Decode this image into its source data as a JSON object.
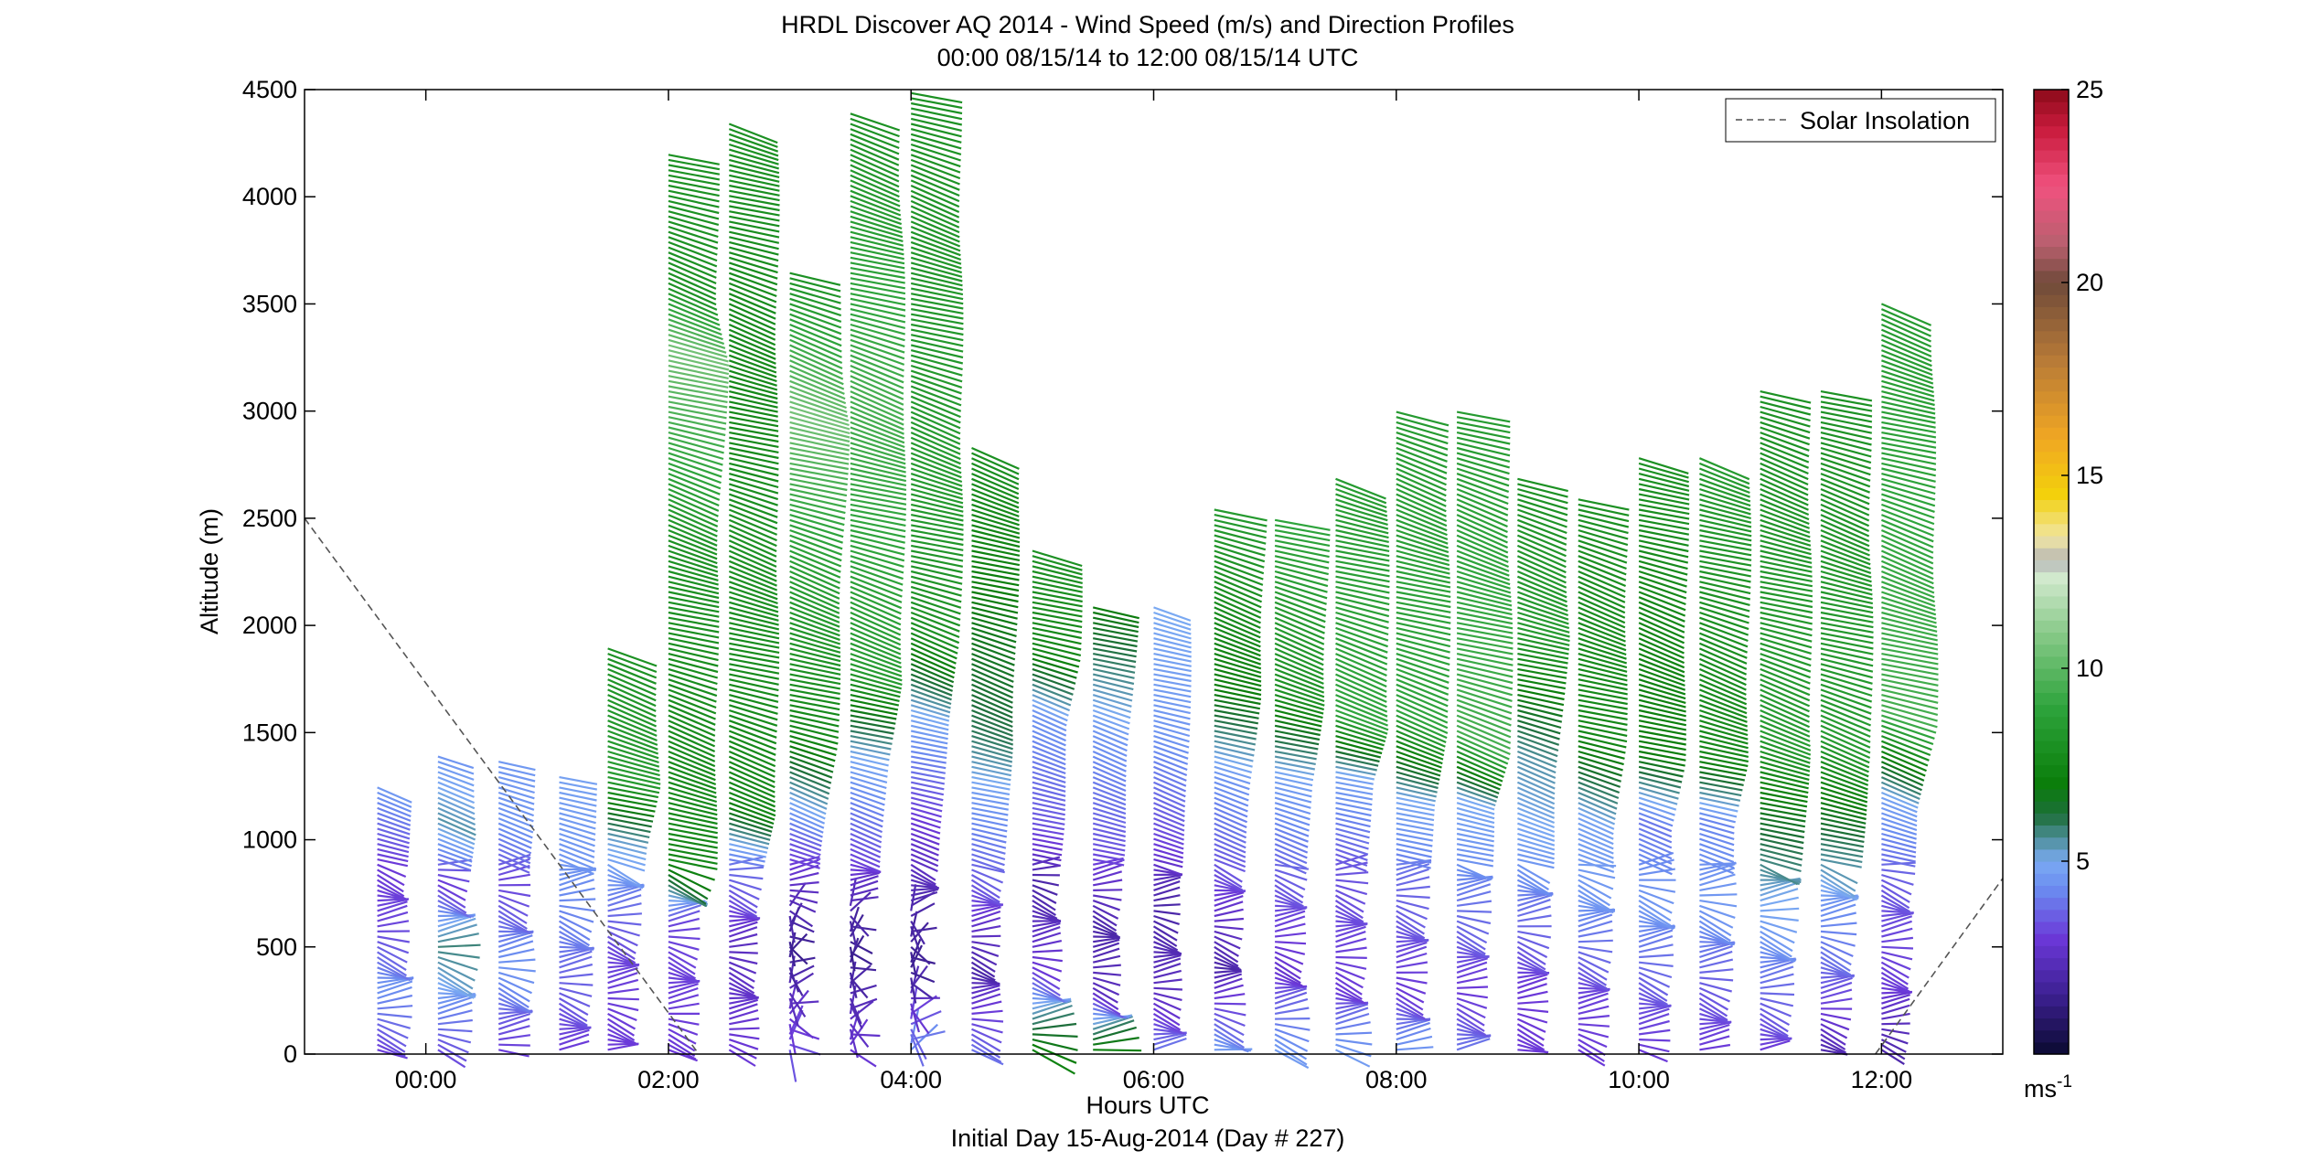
{
  "chart_data": {
    "type": "wind-barb-profile",
    "title": "HRDL Discover AQ 2014 - Wind Speed (m/s) and Direction Profiles",
    "subtitle": "00:00 08/15/14 to 12:00 08/15/14  UTC",
    "xlabel": "Hours UTC",
    "xlabel2": "Initial Day 15-Aug-2014 (Day # 227)",
    "ylabel": "Altitude (m)",
    "xlim_hours": [
      -1.0,
      13.0
    ],
    "ylim": [
      0,
      4500
    ],
    "x_ticks": [
      {
        "value": 0,
        "label": "00:00"
      },
      {
        "value": 2,
        "label": "02:00"
      },
      {
        "value": 4,
        "label": "04:00"
      },
      {
        "value": 6,
        "label": "06:00"
      },
      {
        "value": 8,
        "label": "08:00"
      },
      {
        "value": 10,
        "label": "10:00"
      },
      {
        "value": 12,
        "label": "12:00"
      }
    ],
    "y_ticks": [
      0,
      500,
      1000,
      1500,
      2000,
      2500,
      3000,
      3500,
      4000,
      4500
    ],
    "legend": {
      "position": "top-right",
      "entries": [
        {
          "label": "Solar Insolation",
          "style": "dashed",
          "color": "#000000"
        }
      ]
    },
    "colorbar": {
      "min": 0,
      "max": 25,
      "ticks": [
        5,
        10,
        15,
        20,
        25
      ],
      "units": "ms",
      "units_exp": "-1",
      "stops": [
        {
          "v": 0,
          "color": "#0a0a30"
        },
        {
          "v": 1.5,
          "color": "#3b1f8f"
        },
        {
          "v": 3,
          "color": "#6b38d8"
        },
        {
          "v": 4.3,
          "color": "#6b8cf0"
        },
        {
          "v": 5,
          "color": "#7aaaf2"
        },
        {
          "v": 5.6,
          "color": "#4e8f9a"
        },
        {
          "v": 6.2,
          "color": "#1d6e3a"
        },
        {
          "v": 7,
          "color": "#0a7d0a"
        },
        {
          "v": 9,
          "color": "#2ea43c"
        },
        {
          "v": 11,
          "color": "#8ccb8c"
        },
        {
          "v": 12.4,
          "color": "#d4ead0"
        },
        {
          "v": 12.8,
          "color": "#b5b5b5"
        },
        {
          "v": 13.4,
          "color": "#f1e6a3"
        },
        {
          "v": 14.5,
          "color": "#f3d10c"
        },
        {
          "v": 16,
          "color": "#f0a623"
        },
        {
          "v": 18,
          "color": "#b77a37"
        },
        {
          "v": 20,
          "color": "#6f4a3a"
        },
        {
          "v": 21,
          "color": "#b9606f"
        },
        {
          "v": 22.5,
          "color": "#f0527f"
        },
        {
          "v": 24,
          "color": "#c81a3c"
        },
        {
          "v": 25,
          "color": "#8b0a1a"
        }
      ]
    },
    "solar_insolation": [
      {
        "x": -1.0,
        "y": 2500
      },
      {
        "x": 2.25,
        "y": 0
      },
      {
        "x": 11.95,
        "y": 0
      },
      {
        "x": 13.0,
        "y": 820
      }
    ],
    "profiles": [
      {
        "t": -0.4,
        "top": 1250,
        "ws": [
          [
            0,
            3.0
          ],
          [
            300,
            4.5
          ],
          [
            600,
            3.2
          ],
          [
            900,
            3.0
          ],
          [
            1250,
            4.6
          ]
        ]
      },
      {
        "t": 0.1,
        "top": 1400,
        "ws": [
          [
            0,
            3.2
          ],
          [
            300,
            4.8
          ],
          [
            500,
            5.8
          ],
          [
            800,
            3.0
          ],
          [
            1100,
            5.5
          ],
          [
            1400,
            4.5
          ]
        ]
      },
      {
        "t": 0.6,
        "top": 1380,
        "ws": [
          [
            0,
            3.0
          ],
          [
            400,
            4.5
          ],
          [
            800,
            3.2
          ],
          [
            1100,
            4.5
          ],
          [
            1380,
            4.6
          ]
        ]
      },
      {
        "t": 1.1,
        "top": 1300,
        "ws": [
          [
            0,
            3.0
          ],
          [
            500,
            4.0
          ],
          [
            900,
            4.5
          ],
          [
            1300,
            4.8
          ]
        ]
      },
      {
        "t": 1.5,
        "top": 1900,
        "ws": [
          [
            0,
            3.0
          ],
          [
            500,
            3.2
          ],
          [
            1000,
            5.2
          ],
          [
            1300,
            8.5
          ],
          [
            1900,
            8.0
          ]
        ]
      },
      {
        "t": 2.0,
        "top": 4200,
        "ws": [
          [
            0,
            3.0
          ],
          [
            600,
            3.2
          ],
          [
            900,
            7.5
          ],
          [
            2400,
            8.0
          ],
          [
            3300,
            10.5
          ],
          [
            3600,
            8.0
          ],
          [
            4200,
            8.0
          ]
        ]
      },
      {
        "t": 2.5,
        "top": 4350,
        "ws": [
          [
            0,
            3.0
          ],
          [
            500,
            2.5
          ],
          [
            900,
            4.0
          ],
          [
            1200,
            7.5
          ],
          [
            2500,
            8.0
          ],
          [
            3000,
            7.5
          ],
          [
            4350,
            8.0
          ]
        ]
      },
      {
        "t": 3.0,
        "top": 3650,
        "ws": [
          [
            0,
            3.5
          ],
          [
            500,
            1.5
          ],
          [
            1000,
            3.5
          ],
          [
            1500,
            7.5
          ],
          [
            2500,
            9.0
          ],
          [
            3000,
            10.5
          ],
          [
            3650,
            8.0
          ]
        ]
      },
      {
        "t": 3.5,
        "top": 4400,
        "ws": [
          [
            0,
            3.0
          ],
          [
            500,
            1.5
          ],
          [
            1000,
            3.5
          ],
          [
            1400,
            5.0
          ],
          [
            1800,
            8.5
          ],
          [
            3100,
            9.5
          ],
          [
            4400,
            8.0
          ]
        ]
      },
      {
        "t": 4.0,
        "top": 4500,
        "ws": [
          [
            0,
            4.5
          ],
          [
            400,
            1.5
          ],
          [
            1100,
            3.0
          ],
          [
            1600,
            5.0
          ],
          [
            2000,
            8.0
          ],
          [
            2750,
            8.5
          ],
          [
            4500,
            8.0
          ]
        ]
      },
      {
        "t": 4.5,
        "top": 2850,
        "ws": [
          [
            0,
            4.0
          ],
          [
            400,
            2.0
          ],
          [
            800,
            3.5
          ],
          [
            1200,
            4.6
          ],
          [
            1500,
            6.0
          ],
          [
            2850,
            8.0
          ]
        ]
      },
      {
        "t": 5.0,
        "top": 2350,
        "ws": [
          [
            0,
            7.5
          ],
          [
            400,
            3.0
          ],
          [
            800,
            2.0
          ],
          [
            1100,
            3.5
          ],
          [
            1600,
            4.5
          ],
          [
            1900,
            7.5
          ],
          [
            2350,
            8.0
          ]
        ]
      },
      {
        "t": 5.5,
        "top": 2100,
        "ws": [
          [
            0,
            7.5
          ],
          [
            300,
            2.5
          ],
          [
            600,
            2.0
          ],
          [
            1000,
            3.5
          ],
          [
            1500,
            4.5
          ],
          [
            2100,
            7.0
          ]
        ]
      },
      {
        "t": 6.0,
        "top": 2100,
        "ws": [
          [
            0,
            4.0
          ],
          [
            300,
            2.5
          ],
          [
            700,
            2.0
          ],
          [
            1100,
            3.5
          ],
          [
            1500,
            4.5
          ],
          [
            2100,
            5.0
          ]
        ]
      },
      {
        "t": 6.5,
        "top": 2550,
        "ws": [
          [
            0,
            4.8
          ],
          [
            400,
            2.0
          ],
          [
            900,
            3.5
          ],
          [
            1300,
            4.5
          ],
          [
            1700,
            7.0
          ],
          [
            2550,
            8.5
          ]
        ]
      },
      {
        "t": 7.0,
        "top": 2500,
        "ws": [
          [
            0,
            4.8
          ],
          [
            400,
            2.8
          ],
          [
            800,
            3.5
          ],
          [
            1300,
            4.8
          ],
          [
            1700,
            8.0
          ],
          [
            2500,
            9.0
          ]
        ]
      },
      {
        "t": 7.5,
        "top": 2700,
        "ws": [
          [
            0,
            4.8
          ],
          [
            300,
            3.0
          ],
          [
            900,
            3.5
          ],
          [
            1300,
            4.8
          ],
          [
            1600,
            9.0
          ],
          [
            2700,
            8.5
          ]
        ]
      },
      {
        "t": 8.0,
        "top": 3000,
        "ws": [
          [
            0,
            4.6
          ],
          [
            300,
            3.0
          ],
          [
            800,
            3.8
          ],
          [
            1200,
            5.0
          ],
          [
            1600,
            9.0
          ],
          [
            3000,
            8.5
          ]
        ]
      },
      {
        "t": 8.5,
        "top": 3000,
        "ws": [
          [
            0,
            4.0
          ],
          [
            300,
            3.0
          ],
          [
            800,
            4.2
          ],
          [
            1200,
            5.0
          ],
          [
            1500,
            9.5
          ],
          [
            3000,
            8.5
          ]
        ]
      },
      {
        "t": 9.0,
        "top": 2700,
        "ws": [
          [
            0,
            3.0
          ],
          [
            300,
            3.0
          ],
          [
            700,
            4.0
          ],
          [
            1000,
            4.8
          ],
          [
            1400,
            5.5
          ],
          [
            2000,
            8.5
          ],
          [
            2700,
            8.0
          ]
        ]
      },
      {
        "t": 9.5,
        "top": 2600,
        "ws": [
          [
            0,
            3.0
          ],
          [
            300,
            3.2
          ],
          [
            700,
            4.5
          ],
          [
            1100,
            4.8
          ],
          [
            1500,
            7.5
          ],
          [
            2600,
            8.0
          ]
        ]
      },
      {
        "t": 10.0,
        "top": 2800,
        "ws": [
          [
            0,
            3.0
          ],
          [
            300,
            3.5
          ],
          [
            700,
            4.6
          ],
          [
            1100,
            4.0
          ],
          [
            1400,
            7.0
          ],
          [
            2800,
            8.0
          ]
        ]
      },
      {
        "t": 10.5,
        "top": 2800,
        "ws": [
          [
            0,
            3.0
          ],
          [
            300,
            3.5
          ],
          [
            700,
            4.6
          ],
          [
            1100,
            4.2
          ],
          [
            1400,
            7.5
          ],
          [
            2800,
            8.5
          ]
        ]
      },
      {
        "t": 11.0,
        "top": 3100,
        "ws": [
          [
            0,
            3.0
          ],
          [
            300,
            3.8
          ],
          [
            700,
            5.0
          ],
          [
            1100,
            6.5
          ],
          [
            1500,
            8.5
          ],
          [
            3100,
            8.0
          ]
        ]
      },
      {
        "t": 11.5,
        "top": 3100,
        "ws": [
          [
            0,
            2.0
          ],
          [
            300,
            3.5
          ],
          [
            700,
            4.5
          ],
          [
            1100,
            6.5
          ],
          [
            1500,
            8.5
          ],
          [
            3100,
            8.0
          ]
        ]
      },
      {
        "t": 12.0,
        "top": 3500,
        "ws": [
          [
            0,
            2.0
          ],
          [
            300,
            3.0
          ],
          [
            800,
            3.5
          ],
          [
            1200,
            4.8
          ],
          [
            1600,
            9.5
          ],
          [
            3500,
            8.5
          ]
        ]
      }
    ]
  }
}
